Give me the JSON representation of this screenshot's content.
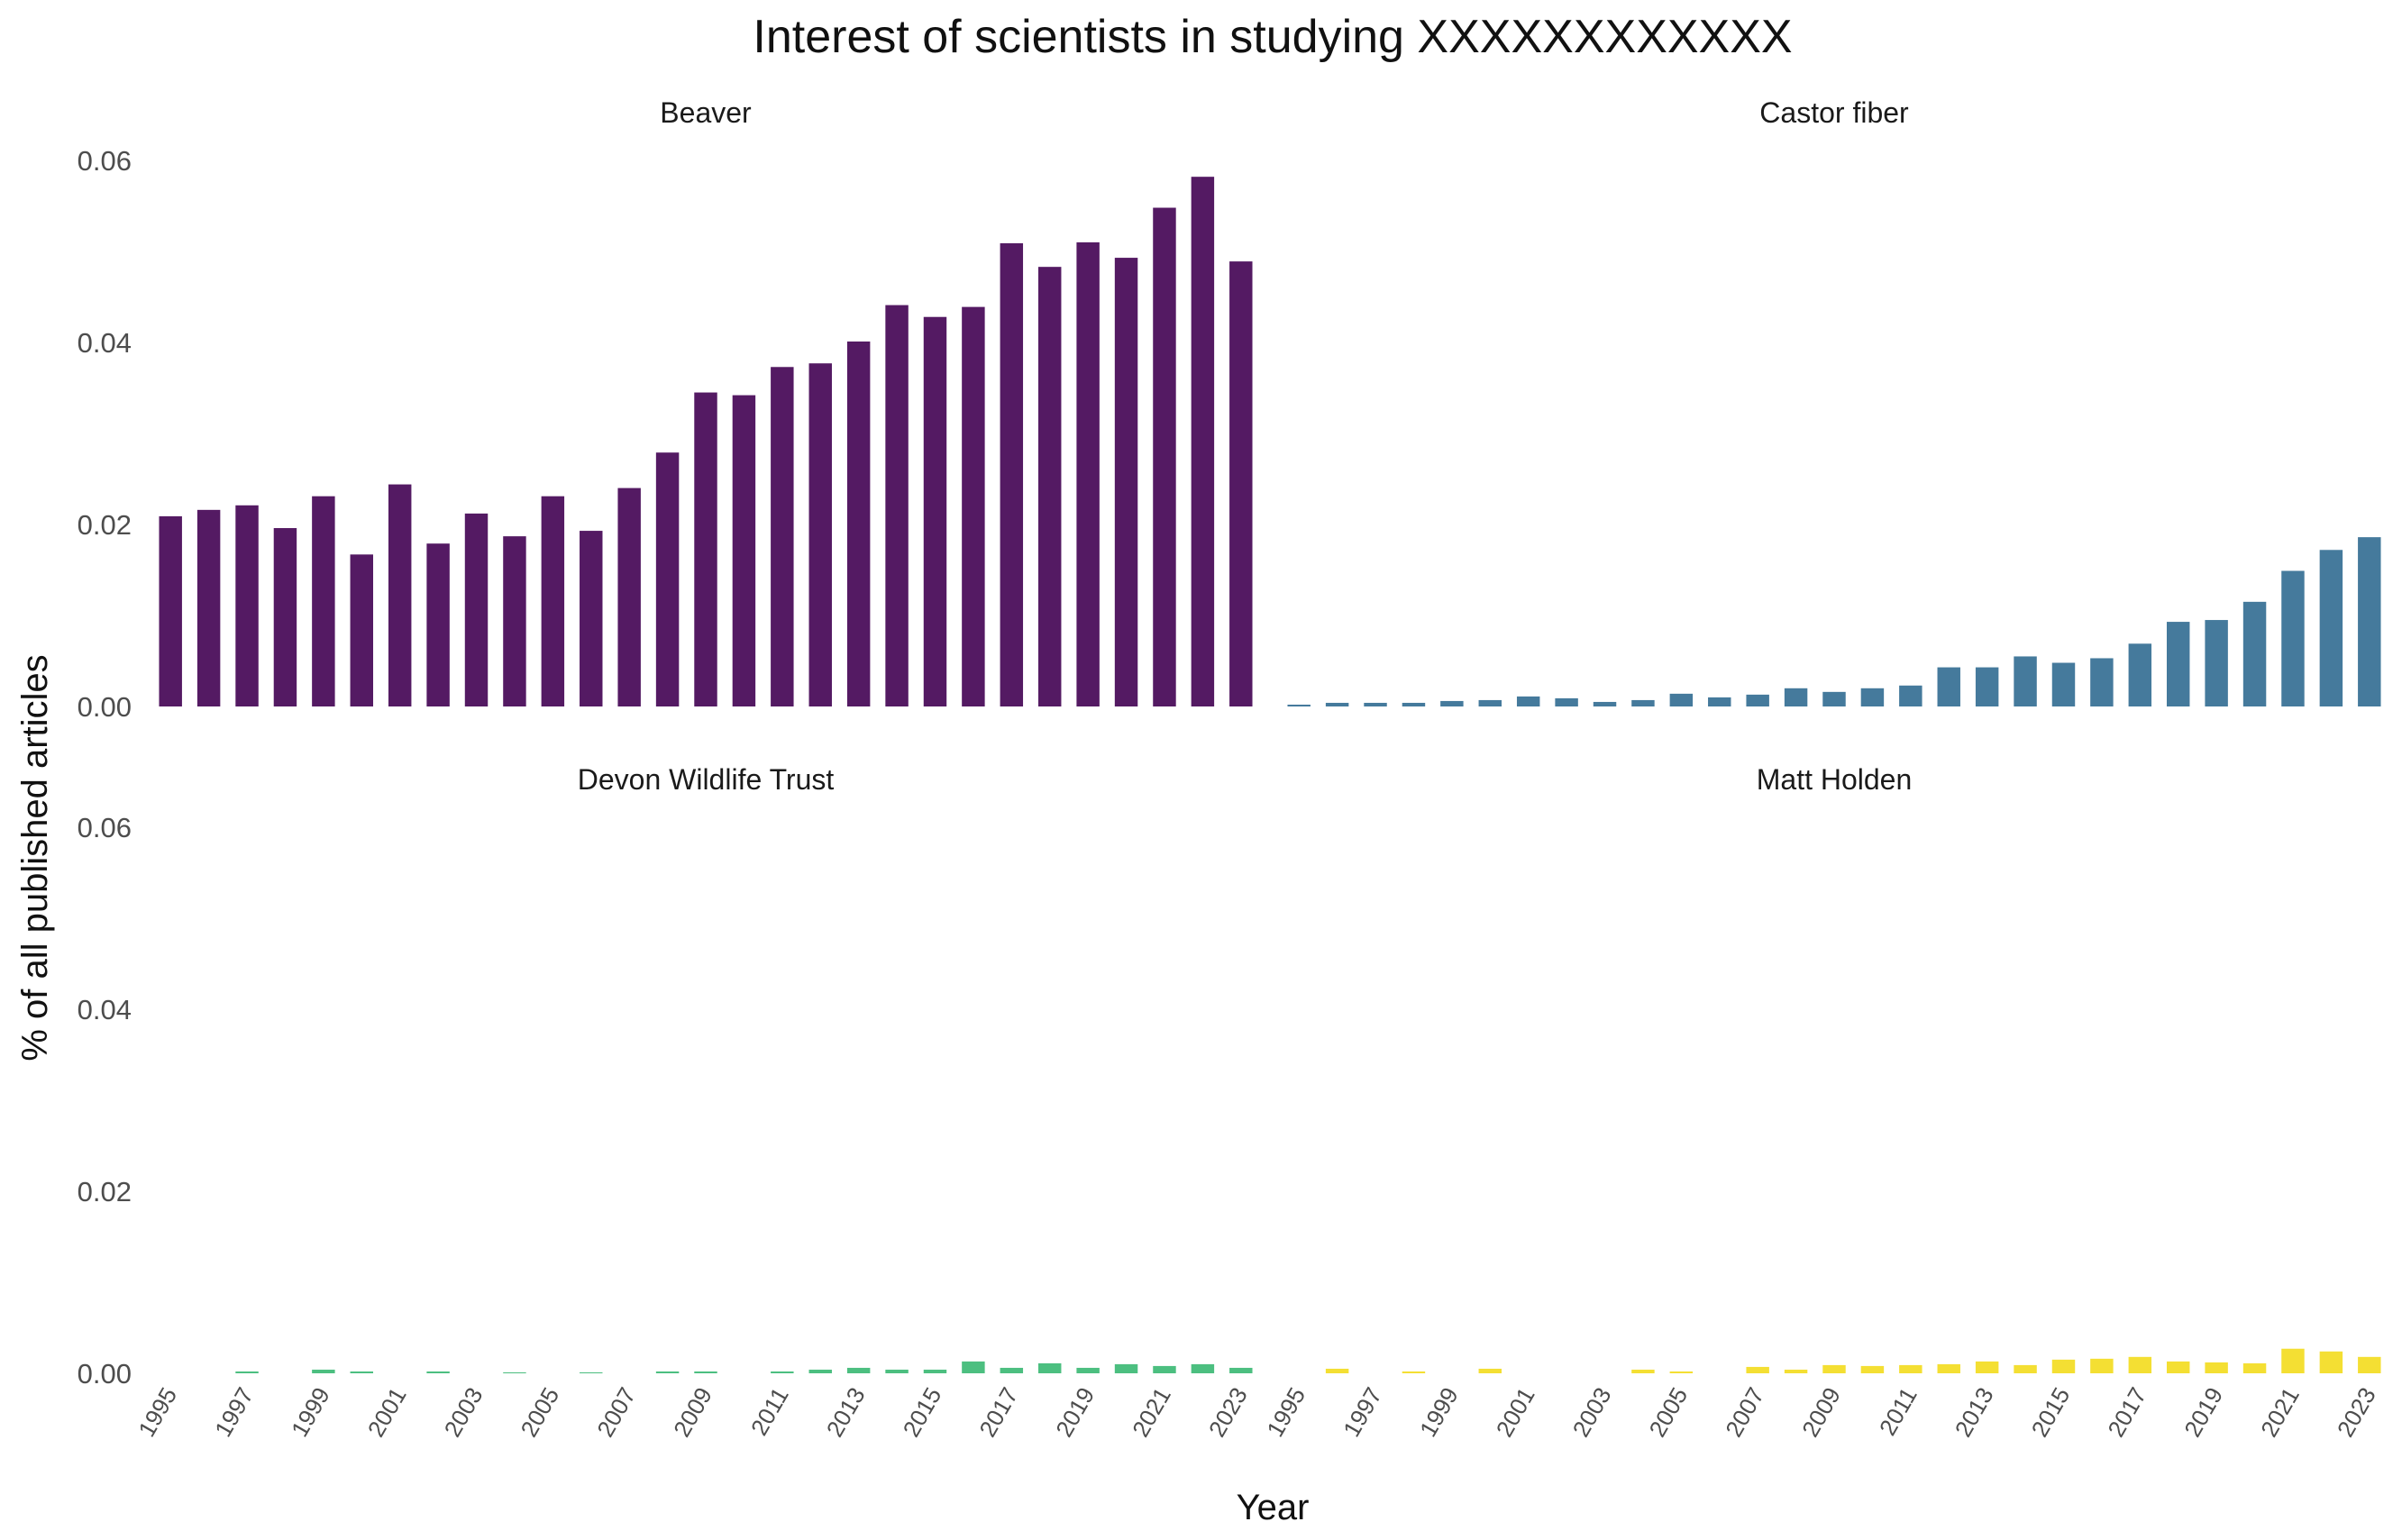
{
  "chart_data": {
    "type": "bar",
    "title": "Interest of scientists in studying XXXXXXXXXXXX",
    "xlabel": "Year",
    "ylabel": "% of all published articles",
    "ylim": [
      0,
      0.06
    ],
    "y_ticks": [
      "0.00",
      "0.02",
      "0.04",
      "0.06"
    ],
    "x_ticks": [
      "1995",
      "1997",
      "1999",
      "2001",
      "2003",
      "2005",
      "2007",
      "2009",
      "2011",
      "2013",
      "2015",
      "2017",
      "2019",
      "2021",
      "2023"
    ],
    "categories": [
      1995,
      1996,
      1997,
      1998,
      1999,
      2000,
      2001,
      2002,
      2003,
      2004,
      2005,
      2006,
      2007,
      2008,
      2009,
      2010,
      2011,
      2012,
      2013,
      2014,
      2015,
      2016,
      2017,
      2018,
      2019,
      2020,
      2021,
      2022,
      2023
    ],
    "grid": false,
    "legend": "none",
    "series": [
      {
        "name": "Beaver",
        "color": "#541a63",
        "values": [
          0.0209,
          0.0216,
          0.0221,
          0.0196,
          0.0231,
          0.0167,
          0.0244,
          0.0179,
          0.0212,
          0.0187,
          0.0231,
          0.0193,
          0.024,
          0.0279,
          0.0345,
          0.0342,
          0.0373,
          0.0377,
          0.0401,
          0.0441,
          0.0428,
          0.0439,
          0.0509,
          0.0483,
          0.051,
          0.0493,
          0.0548,
          0.0582,
          0.0489
        ]
      },
      {
        "name": "Castor fiber",
        "color": "#457a9c",
        "values": [
          0.0002,
          0.0004,
          0.0004,
          0.0004,
          0.0006,
          0.0007,
          0.0011,
          0.0009,
          0.0005,
          0.0007,
          0.0014,
          0.001,
          0.0013,
          0.002,
          0.0016,
          0.002,
          0.0023,
          0.0043,
          0.0043,
          0.0055,
          0.0048,
          0.0053,
          0.0069,
          0.0093,
          0.0095,
          0.0115,
          0.0149,
          0.0172,
          0.0186
        ]
      },
      {
        "name": "Devon Wildlife Trust",
        "color": "#4cbf80",
        "values": [
          0,
          0,
          0.0002,
          0,
          0.0004,
          0.0002,
          0,
          0.0002,
          0,
          0.0001,
          0,
          0.0001,
          0,
          0.0002,
          0.0002,
          0,
          0.0002,
          0.0004,
          0.0006,
          0.0004,
          0.0004,
          0.0013,
          0.0006,
          0.0011,
          0.0006,
          0.001,
          0.0008,
          0.001,
          0.0006
        ]
      },
      {
        "name": "Matt Holden",
        "color": "#f4df33",
        "values": [
          0,
          0.0005,
          0,
          0.0002,
          0,
          0.0005,
          0,
          0,
          0,
          0.0004,
          0.0002,
          0,
          0.0007,
          0.0004,
          0.0009,
          0.0008,
          0.0009,
          0.001,
          0.0013,
          0.0009,
          0.0015,
          0.0016,
          0.0018,
          0.0013,
          0.0012,
          0.0011,
          0.0027,
          0.0024,
          0.0018
        ]
      }
    ]
  }
}
